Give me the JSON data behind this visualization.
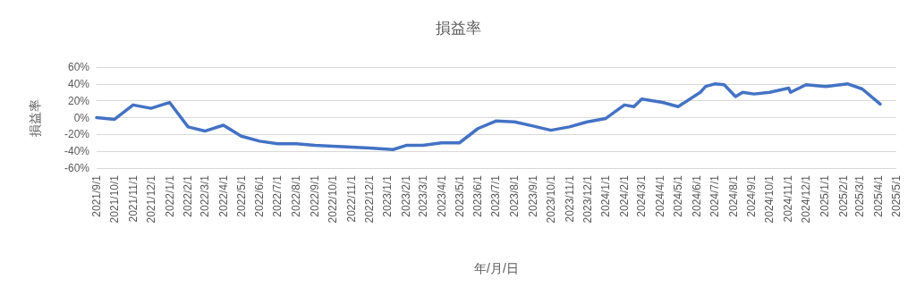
{
  "chart_data": {
    "type": "line",
    "title": "損益率",
    "xlabel": "年/月/日",
    "ylabel": "損益率",
    "x": [
      "2021-09-01",
      "2021-10-01",
      "2021-11-01",
      "2021-12-01",
      "2022-01-01",
      "2022-02-01",
      "2022-03-01",
      "2022-04-01",
      "2022-05-01",
      "2022-06-01",
      "2022-07-01",
      "2022-08-01",
      "2022-09-01",
      "2022-10-01",
      "2022-11-01",
      "2022-12-01",
      "2023-01-10",
      "2023-02-01",
      "2023-03-01",
      "2023-04-01",
      "2023-05-01",
      "2023-06-01",
      "2023-07-01",
      "2023-08-01",
      "2023-09-01",
      "2023-10-01",
      "2023-11-01",
      "2023-12-01",
      "2024-01-01",
      "2024-02-01",
      "2024-02-17",
      "2024-03-01",
      "2024-04-05",
      "2024-05-01",
      "2024-06-07",
      "2024-06-16",
      "2024-07-01",
      "2024-07-17",
      "2024-08-05",
      "2024-08-17",
      "2024-09-05",
      "2024-10-01",
      "2024-11-02",
      "2024-11-05",
      "2024-12-01",
      "2025-01-03",
      "2025-02-09",
      "2025-03-05",
      "2025-04-04"
    ],
    "series": [
      {
        "color": "#4472c4",
        "values": [
          0,
          -2,
          15,
          11,
          18,
          -11,
          -16,
          -9,
          -22,
          -28,
          -31,
          -31,
          -33,
          -34,
          -35,
          -36,
          -38,
          -33,
          -33,
          -30,
          -30,
          -13,
          -4,
          -5,
          -10,
          -15,
          -11,
          -5,
          -1,
          15,
          13,
          22,
          18,
          13,
          30,
          37,
          40,
          39,
          25,
          30,
          28,
          30,
          35,
          30,
          39,
          37,
          40,
          34,
          16
        ]
      }
    ],
    "xlim": [
      "2021-09-01",
      "2025-05-01"
    ],
    "xticks": [
      {
        "value": "2021-09-01",
        "label": "2021/9/1"
      },
      {
        "value": "2021-10-01",
        "label": "2021/10/1"
      },
      {
        "value": "2021-11-01",
        "label": "2021/11/1"
      },
      {
        "value": "2021-12-01",
        "label": "2021/12/1"
      },
      {
        "value": "2022-01-01",
        "label": "2022/1/1"
      },
      {
        "value": "2022-02-01",
        "label": "2022/2/1"
      },
      {
        "value": "2022-03-01",
        "label": "2022/3/1"
      },
      {
        "value": "2022-04-01",
        "label": "2022/4/1"
      },
      {
        "value": "2022-05-01",
        "label": "2022/5/1"
      },
      {
        "value": "2022-06-01",
        "label": "2022/6/1"
      },
      {
        "value": "2022-07-01",
        "label": "2022/7/1"
      },
      {
        "value": "2022-08-01",
        "label": "2022/8/1"
      },
      {
        "value": "2022-09-01",
        "label": "2022/9/1"
      },
      {
        "value": "2022-10-01",
        "label": "2022/10/1"
      },
      {
        "value": "2022-11-01",
        "label": "2022/11/1"
      },
      {
        "value": "2022-12-01",
        "label": "2022/12/1"
      },
      {
        "value": "2023-01-01",
        "label": "2023/1/1"
      },
      {
        "value": "2023-02-01",
        "label": "2023/2/1"
      },
      {
        "value": "2023-03-01",
        "label": "2023/3/1"
      },
      {
        "value": "2023-04-01",
        "label": "2023/4/1"
      },
      {
        "value": "2023-05-01",
        "label": "2023/5/1"
      },
      {
        "value": "2023-06-01",
        "label": "2023/6/1"
      },
      {
        "value": "2023-07-01",
        "label": "2023/7/1"
      },
      {
        "value": "2023-08-01",
        "label": "2023/8/1"
      },
      {
        "value": "2023-09-01",
        "label": "2023/9/1"
      },
      {
        "value": "2023-10-01",
        "label": "2023/10/1"
      },
      {
        "value": "2023-11-01",
        "label": "2023/11/1"
      },
      {
        "value": "2023-12-01",
        "label": "2023/12/1"
      },
      {
        "value": "2024-01-01",
        "label": "2024/1/1"
      },
      {
        "value": "2024-02-01",
        "label": "2024/2/1"
      },
      {
        "value": "2024-03-01",
        "label": "2024/3/1"
      },
      {
        "value": "2024-04-01",
        "label": "2024/4/1"
      },
      {
        "value": "2024-05-01",
        "label": "2024/5/1"
      },
      {
        "value": "2024-06-01",
        "label": "2024/6/1"
      },
      {
        "value": "2024-07-01",
        "label": "2024/7/1"
      },
      {
        "value": "2024-08-01",
        "label": "2024/8/1"
      },
      {
        "value": "2024-09-01",
        "label": "2024/9/1"
      },
      {
        "value": "2024-10-01",
        "label": "2024/10/1"
      },
      {
        "value": "2024-11-01",
        "label": "2024/11/1"
      },
      {
        "value": "2024-12-01",
        "label": "2024/12/1"
      },
      {
        "value": "2025-01-01",
        "label": "2025/1/1"
      },
      {
        "value": "2025-02-01",
        "label": "2025/2/1"
      },
      {
        "value": "2025-03-01",
        "label": "2025/3/1"
      },
      {
        "value": "2025-04-01",
        "label": "2025/4/1"
      },
      {
        "value": "2025-05-01",
        "label": "2025/5/1"
      }
    ],
    "ylim": [
      -60,
      60
    ],
    "yticks": [
      {
        "value": -60,
        "label": "-60%"
      },
      {
        "value": -40,
        "label": "-40%"
      },
      {
        "value": -20,
        "label": "-20%"
      },
      {
        "value": 0,
        "label": "0%"
      },
      {
        "value": 20,
        "label": "20%"
      },
      {
        "value": 40,
        "label": "40%"
      },
      {
        "value": 60,
        "label": "60%"
      }
    ],
    "grid": "y",
    "marker": "none",
    "line_style": "solid"
  }
}
